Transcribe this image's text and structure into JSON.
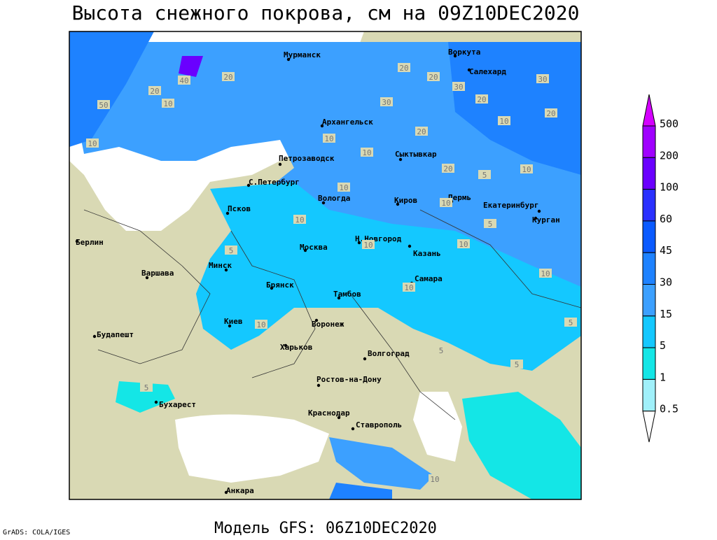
{
  "header": {
    "title": "Высота снежного покрова, см на 09Z10DEC2020"
  },
  "footer": {
    "model": "Модель GFS: 06Z10DEC2020",
    "credit": "GrADS: COLA/IGES"
  },
  "cities": [
    "Мурманск",
    "Воркута",
    "Салехард",
    "Архангельск",
    "Петрозаводск",
    "Сыктывкар",
    "С.Петербург",
    "Вологда",
    "Киров",
    "Пермь",
    "Екатеринбург",
    "Курган",
    "Псков",
    "Берлин",
    "Н.Новгород",
    "Казань",
    "Москва",
    "Минск",
    "Варшава",
    "Самара",
    "Брянск",
    "Тамбов",
    "Киев",
    "Воронеж",
    "Будапешт",
    "Харьков",
    "Волгоград",
    "Ростов-на-Дону",
    "Бухарест",
    "Краснодар",
    "Ставрополь",
    "Анкара"
  ],
  "contour_labels": [
    40,
    20,
    20,
    10,
    50,
    10,
    20,
    20,
    30,
    20,
    30,
    30,
    20,
    10,
    20,
    10,
    20,
    5,
    10,
    10,
    10,
    10,
    10,
    5,
    5,
    10,
    10,
    10,
    5,
    10,
    5,
    10,
    5,
    5,
    10
  ],
  "legend": {
    "levels": [
      {
        "label": "500",
        "color": "#d400ff"
      },
      {
        "label": "200",
        "color": "#a000ff"
      },
      {
        "label": "100",
        "color": "#6a00ff"
      },
      {
        "label": "60",
        "color": "#2a30ff"
      },
      {
        "label": "45",
        "color": "#0a5aff"
      },
      {
        "label": "30",
        "color": "#1e82ff"
      },
      {
        "label": "15",
        "color": "#3ca0ff"
      },
      {
        "label": "5",
        "color": "#14c8ff"
      },
      {
        "label": "1",
        "color": "#14e6e6"
      },
      {
        "label": "0.5",
        "color": "#a0f0fa"
      },
      {
        "color": "#ffffff"
      }
    ]
  }
}
